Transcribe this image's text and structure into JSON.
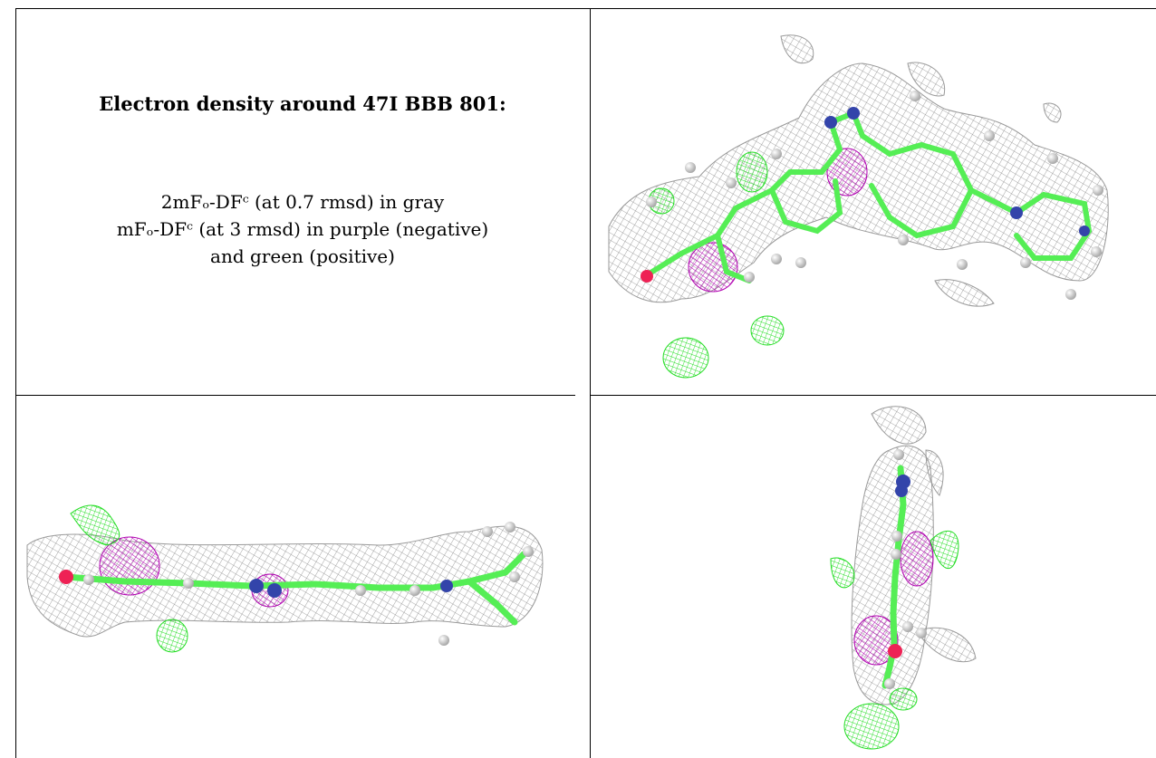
{
  "figure": {
    "title": "Electron density around 47I BBB 801:",
    "legend_lines": [
      "2mFₒ-DFᶜ (at 0.7 rmsd) in gray",
      "mFₒ-DFᶜ (at 3 rmsd) in purple (negative)",
      "and green (positive)"
    ]
  },
  "colors": {
    "mesh_2fofc": "#9a9a9a",
    "mesh_negative": "#b000b0",
    "mesh_positive": "#22dd22",
    "carbon": "#55ee55",
    "nitrogen": "#3344aa",
    "oxygen": "#ee2255",
    "hydrogen": "#d8d8d8"
  },
  "panels": [
    {
      "name": "density-view-front",
      "view": "front"
    },
    {
      "name": "density-view-side",
      "view": "side"
    },
    {
      "name": "density-view-end",
      "view": "end"
    }
  ]
}
